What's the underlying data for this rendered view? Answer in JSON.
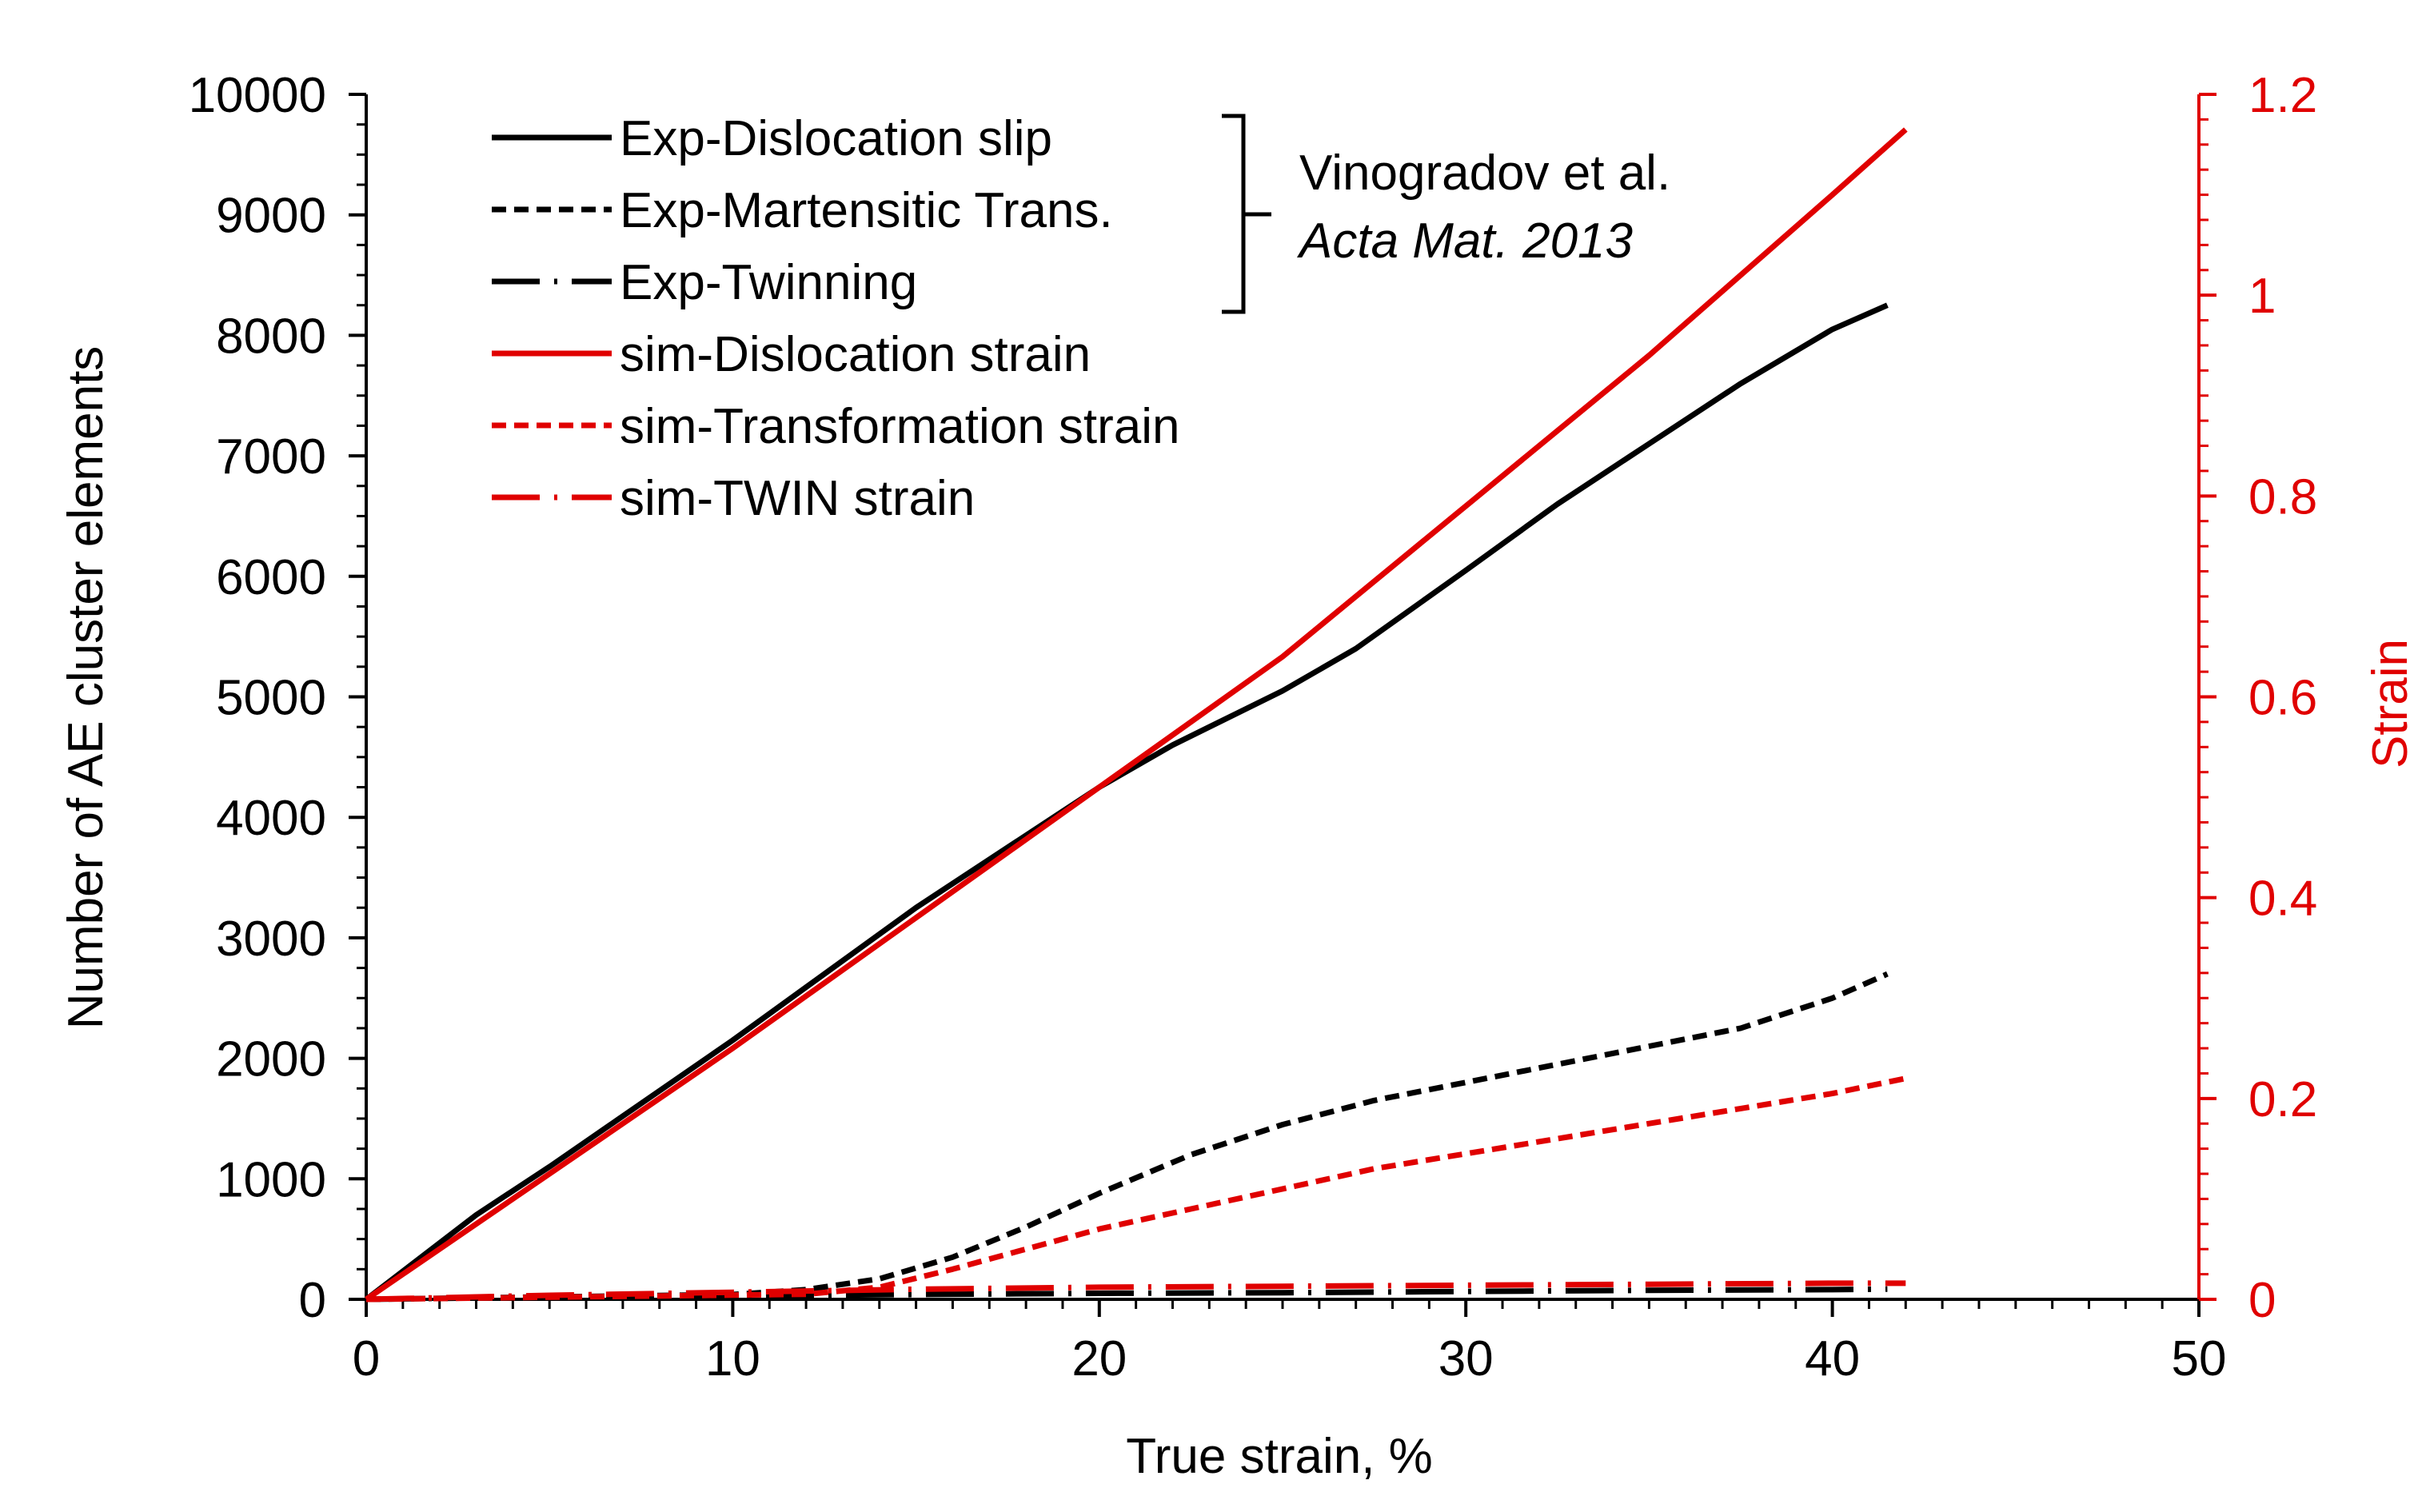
{
  "chart_data": {
    "type": "line",
    "xlabel": "True strain, %",
    "ylabel_left": "Number of AE cluster elements",
    "ylabel_right": "Strain",
    "xlim": [
      0,
      50
    ],
    "ylim_left": [
      0,
      10000
    ],
    "ylim_right": [
      0,
      1.2
    ],
    "x_ticks": [
      "0",
      "10",
      "20",
      "30",
      "40",
      "50"
    ],
    "y_ticks_left": [
      "0",
      "1000",
      "2000",
      "3000",
      "4000",
      "5000",
      "6000",
      "7000",
      "8000",
      "9000",
      "10000"
    ],
    "y_ticks_right": [
      "0",
      "0.2",
      "0.4",
      "0.6",
      "0.8",
      "1",
      "1.2"
    ],
    "colors": {
      "exp": "#000000",
      "sim": "#e00000"
    },
    "series": [
      {
        "name": "Exp-Dislocation slip",
        "axis": "left",
        "color": "#000000",
        "style": "solid",
        "x": [
          0,
          3,
          5,
          10,
          15,
          20,
          22,
          25,
          27,
          30,
          32.5,
          35,
          37.5,
          40,
          41.5
        ],
        "y": [
          0,
          700,
          1100,
          2150,
          3250,
          4250,
          4600,
          5050,
          5400,
          6050,
          6600,
          7100,
          7600,
          8050,
          8250
        ]
      },
      {
        "name": "Exp-Martensitic Trans.",
        "axis": "left",
        "color": "#000000",
        "style": "dashed",
        "x": [
          0,
          10,
          12,
          14,
          16,
          18,
          20,
          22.5,
          25,
          27.5,
          30,
          32.5,
          35,
          37.5,
          40,
          41.5
        ],
        "y": [
          0,
          40,
          80,
          170,
          350,
          600,
          880,
          1200,
          1450,
          1650,
          1800,
          1950,
          2100,
          2250,
          2500,
          2700
        ]
      },
      {
        "name": "Exp-Twinning",
        "axis": "left",
        "color": "#000000",
        "style": "dashdot",
        "x": [
          0,
          5,
          10,
          15,
          20,
          25,
          30,
          35,
          40,
          41.5
        ],
        "y": [
          0,
          20,
          30,
          40,
          50,
          55,
          65,
          75,
          80,
          85
        ]
      },
      {
        "name": "sim-Dislocation strain",
        "axis": "right",
        "color": "#e00000",
        "style": "solid",
        "x": [
          0,
          10,
          20,
          25,
          30,
          35,
          40,
          42
        ],
        "y": [
          0,
          0.25,
          0.51,
          0.64,
          0.79,
          0.94,
          1.1,
          1.165
        ]
      },
      {
        "name": "sim-Transformation strain",
        "axis": "right",
        "color": "#e00000",
        "style": "dashed",
        "x": [
          0,
          12,
          14,
          16,
          18,
          20,
          22.5,
          25,
          27.5,
          30,
          32.5,
          35,
          37.5,
          40,
          42
        ],
        "y": [
          0,
          0.005,
          0.012,
          0.03,
          0.05,
          0.07,
          0.09,
          0.11,
          0.13,
          0.145,
          0.16,
          0.175,
          0.19,
          0.205,
          0.22
        ]
      },
      {
        "name": "sim-TWIN strain",
        "axis": "right",
        "color": "#e00000",
        "style": "longdashdot",
        "x": [
          0,
          5,
          10,
          15,
          20,
          25,
          30,
          35,
          40,
          42
        ],
        "y": [
          0,
          0.004,
          0.007,
          0.01,
          0.012,
          0.013,
          0.014,
          0.015,
          0.016,
          0.016
        ]
      }
    ],
    "annotation": {
      "line1": "Vinogradov et al.",
      "line2": "Acta Mat. 2013"
    }
  }
}
